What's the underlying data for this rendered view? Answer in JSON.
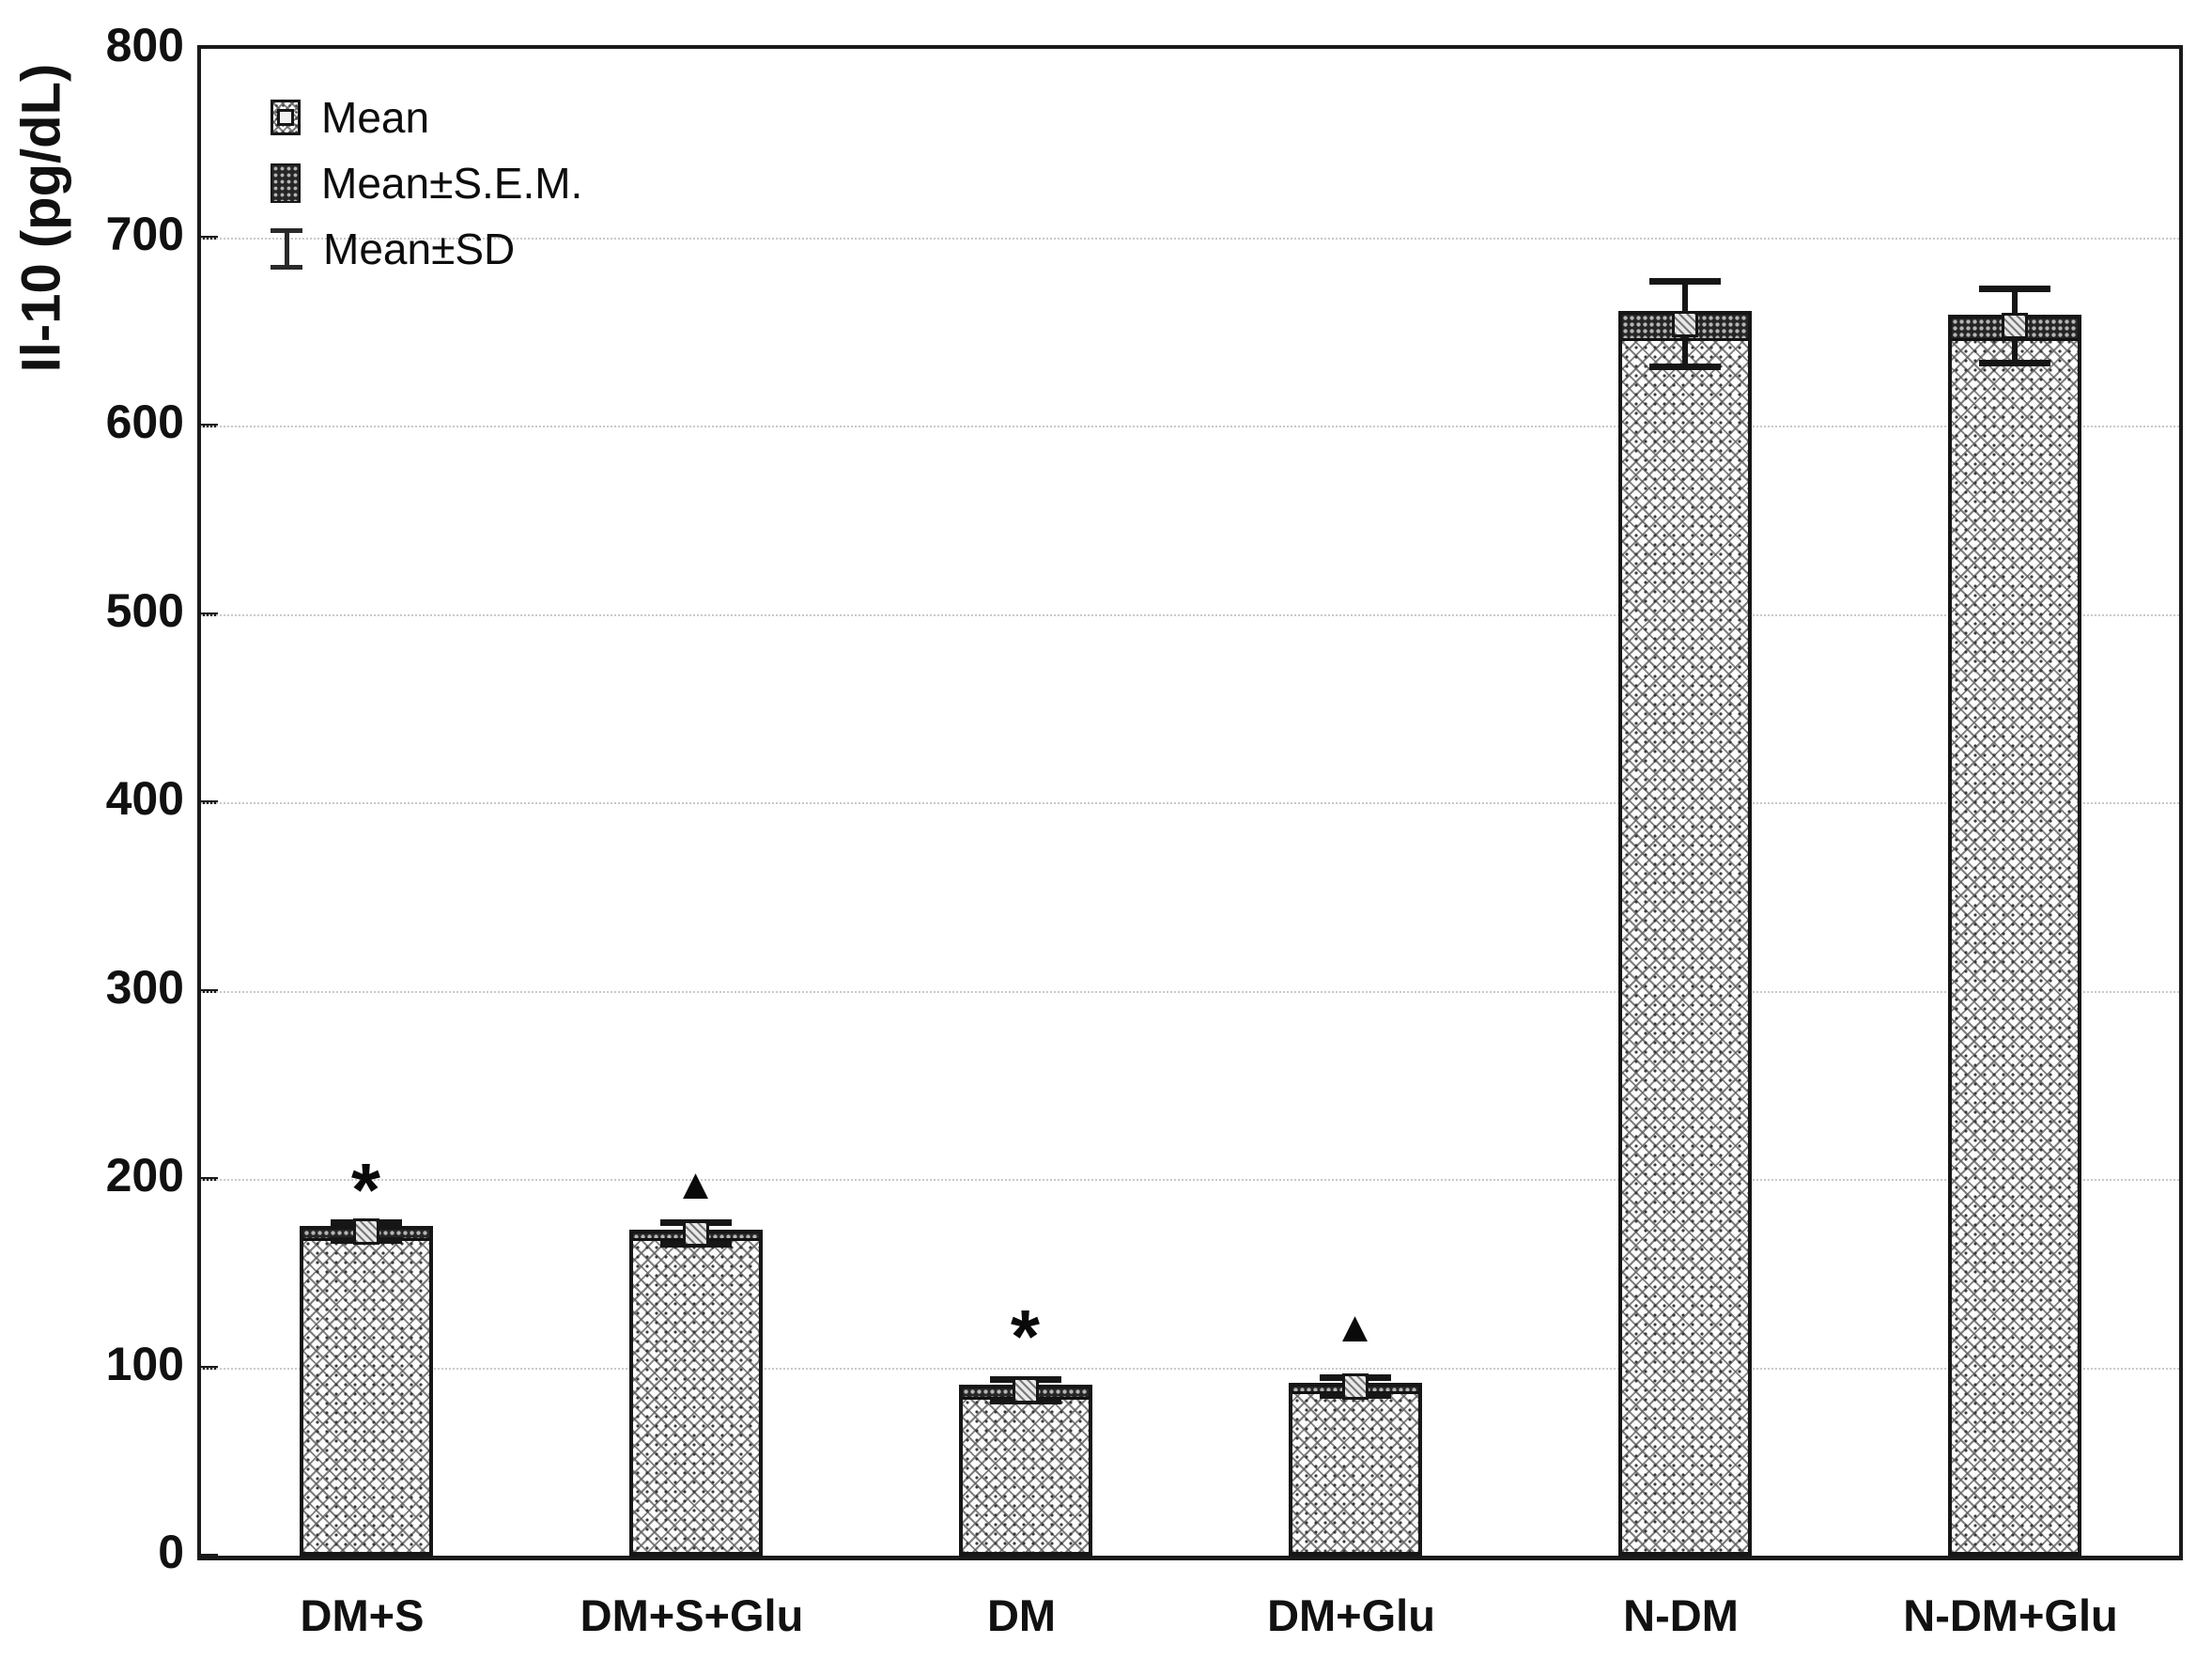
{
  "chart_data": {
    "type": "bar",
    "title": "",
    "ylabel": "Il-10 (pg/dL)",
    "xlabel": "",
    "ylim": [
      0,
      800
    ],
    "yticks": [
      0,
      100,
      200,
      300,
      400,
      500,
      600,
      700,
      800
    ],
    "grid": "horizontal dotted gridlines every 100",
    "legend_position": "top-left inside plot",
    "legend": [
      {
        "label": "Mean",
        "marker": "hatched-square-with-inner-square"
      },
      {
        "label": "Mean±S.E.M.",
        "marker": "dark-dotted-box"
      },
      {
        "label": "Mean±SD",
        "marker": "error-bar-whisker"
      }
    ],
    "categories": [
      "DM+S",
      "DM+S+Glu",
      "DM",
      "DM+Glu",
      "N-DM",
      "N-DM+Glu"
    ],
    "series": [
      {
        "name": "Mean",
        "values": [
          172,
          171,
          88,
          90,
          654,
          653
        ]
      },
      {
        "name": "S.E.M.",
        "values": [
          3,
          2,
          3,
          2,
          7,
          6
        ]
      },
      {
        "name": "SD",
        "values": [
          5,
          6,
          6,
          5,
          23,
          20
        ]
      }
    ],
    "bar_style": "white bar with diagonal crosshatch, dark dotted Mean±S.E.M. band at top, SD whiskers with caps, small square mean marker",
    "annotations": [
      {
        "category": "DM+S",
        "symbol": "*",
        "y": 200
      },
      {
        "category": "DM+S+Glu",
        "symbol": "▲",
        "y": 197
      },
      {
        "category": "DM",
        "symbol": "*",
        "y": 122
      },
      {
        "category": "DM+Glu",
        "symbol": "▲",
        "y": 121
      }
    ],
    "colors": {
      "background": "#ffffff",
      "axis": "#1a1a1a",
      "grid": "#c9c9c9",
      "bar_border": "#161616",
      "hatch": "#5a5a5a",
      "sem_band_fill": "#262626",
      "sem_band_dot": "#b5b5b5"
    }
  }
}
